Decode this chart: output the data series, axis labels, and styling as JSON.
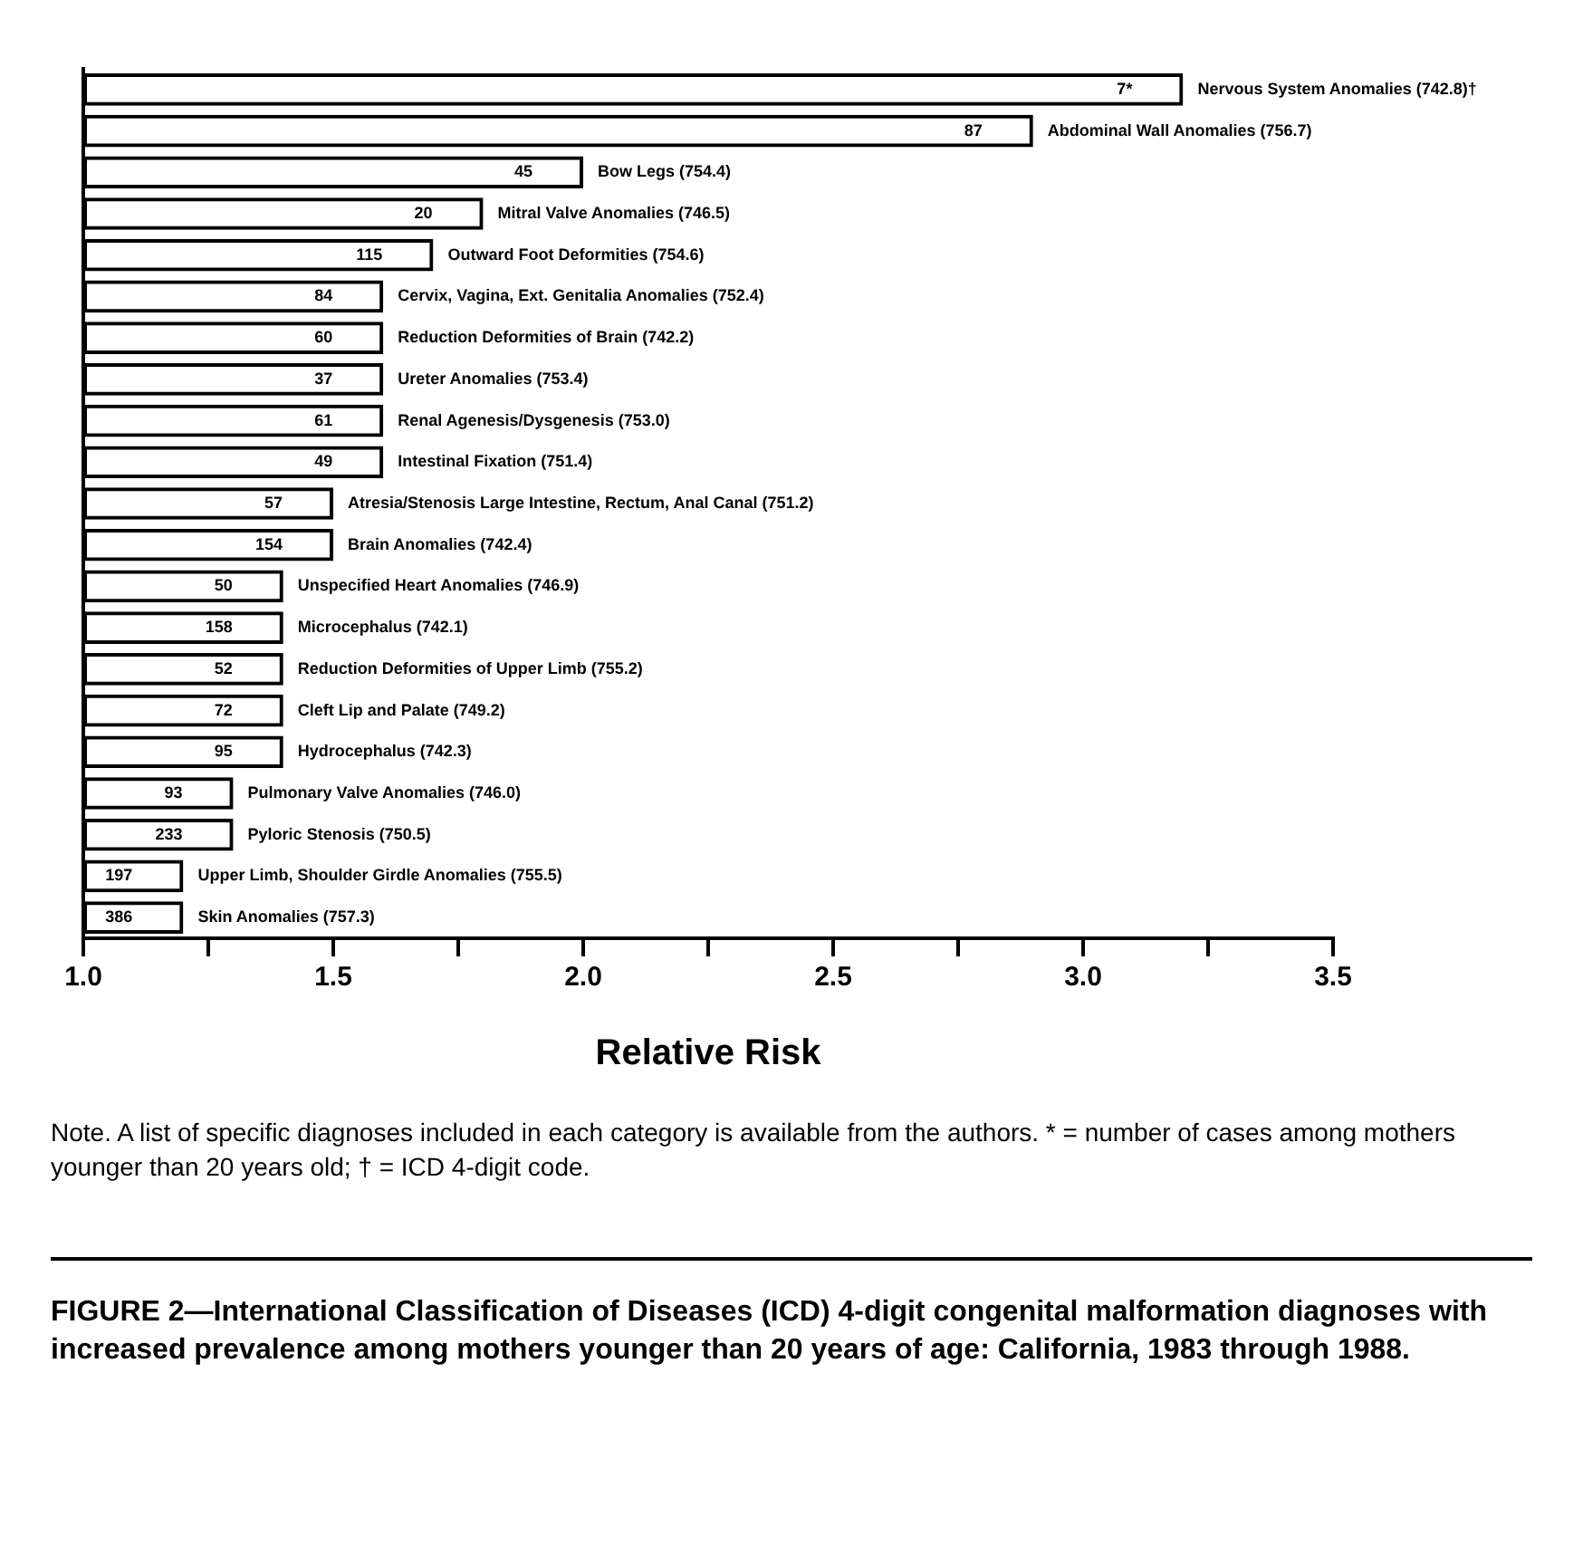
{
  "chart_data": {
    "type": "bar",
    "orientation": "horizontal",
    "xlabel": "Relative Risk",
    "categories": [
      "Nervous System Anomalies (742.8)†",
      "Abdominal Wall Anomalies (756.7)",
      "Bow Legs (754.4)",
      "Mitral Valve Anomalies (746.5)",
      "Outward Foot Deformities (754.6)",
      "Cervix, Vagina, Ext. Genitalia Anomalies (752.4)",
      "Reduction Deformities of Brain (742.2)",
      "Ureter Anomalies (753.4)",
      "Renal Agenesis/Dysgenesis (753.0)",
      "Intestinal Fixation (751.4)",
      "Atresia/Stenosis Large Intestine, Rectum, Anal Canal (751.2)",
      "Brain Anomalies (742.4)",
      "Unspecified Heart Anomalies (746.9)",
      "Microcephalus (742.1)",
      "Reduction Deformities of Upper Limb (755.2)",
      "Cleft Lip and Palate (749.2)",
      "Hydrocephalus (742.3)",
      "Pulmonary Valve Anomalies (746.0)",
      "Pyloric Stenosis (750.5)",
      "Upper Limb, Shoulder Girdle Anomalies (755.5)",
      "Skin Anomalies (757.3)"
    ],
    "values": [
      3.2,
      2.9,
      2.0,
      1.8,
      1.7,
      1.6,
      1.6,
      1.6,
      1.6,
      1.6,
      1.5,
      1.5,
      1.4,
      1.4,
      1.4,
      1.4,
      1.4,
      1.3,
      1.3,
      1.2,
      1.2
    ],
    "color": "#000000",
    "xlim": [
      1.0,
      3.5
    ],
    "xticks": [
      {
        "value": 1.0,
        "label": "1.0"
      },
      {
        "value": 1.25,
        "label": null
      },
      {
        "value": 1.5,
        "label": "1.5"
      },
      {
        "value": 1.75,
        "label": null
      },
      {
        "value": 2.0,
        "label": "2.0"
      },
      {
        "value": 2.25,
        "label": null
      },
      {
        "value": 2.5,
        "label": "2.5"
      },
      {
        "value": 2.75,
        "label": null
      },
      {
        "value": 3.0,
        "label": "3.0"
      },
      {
        "value": 3.25,
        "label": null
      },
      {
        "value": 3.5,
        "label": "3.5"
      }
    ],
    "grid": false,
    "legend": false,
    "annotations": [
      {
        "text": "7*",
        "y": "Nervous System Anomalies (742.8)†"
      },
      {
        "text": "87",
        "y": "Abdominal Wall Anomalies (756.7)"
      },
      {
        "text": "45",
        "y": "Bow Legs (754.4)"
      },
      {
        "text": "20",
        "y": "Mitral Valve Anomalies (746.5)"
      },
      {
        "text": "115",
        "y": "Outward Foot Deformities (754.6)"
      },
      {
        "text": "84",
        "y": "Cervix, Vagina, Ext. Genitalia Anomalies (752.4)"
      },
      {
        "text": "60",
        "y": "Reduction Deformities of Brain (742.2)"
      },
      {
        "text": "37",
        "y": "Ureter Anomalies (753.4)"
      },
      {
        "text": "61",
        "y": "Renal Agenesis/Dysgenesis (753.0)"
      },
      {
        "text": "49",
        "y": "Intestinal Fixation (751.4)"
      },
      {
        "text": "57",
        "y": "Atresia/Stenosis Large Intestine, Rectum, Anal Canal (751.2)"
      },
      {
        "text": "154",
        "y": "Brain Anomalies (742.4)"
      },
      {
        "text": "50",
        "y": "Unspecified Heart Anomalies (746.9)"
      },
      {
        "text": "158",
        "y": "Microcephalus (742.1)"
      },
      {
        "text": "52",
        "y": "Reduction Deformities of Upper Limb (755.2)"
      },
      {
        "text": "72",
        "y": "Cleft Lip and Palate (749.2)"
      },
      {
        "text": "95",
        "y": "Hydrocephalus (742.3)"
      },
      {
        "text": "93",
        "y": "Pulmonary Valve Anomalies (746.0)"
      },
      {
        "text": "233",
        "y": "Pyloric Stenosis (750.5)"
      },
      {
        "text": "197",
        "y": "Upper Limb, Shoulder Girdle Anomalies (755.5)"
      },
      {
        "text": "386",
        "y": "Skin Anomalies (757.3)"
      },
      "Note. A list of specific diagnoses included in each category is available from the authors. * = number of cases among mothers younger than 20 years old; † = ICD 4-digit code.",
      "FIGURE 2—International Classification of Diseases (ICD) 4-digit congenital malformation diagnoses with increased prevalence among mothers younger than 20 years of age: California, 1983 through 1988."
    ]
  }
}
